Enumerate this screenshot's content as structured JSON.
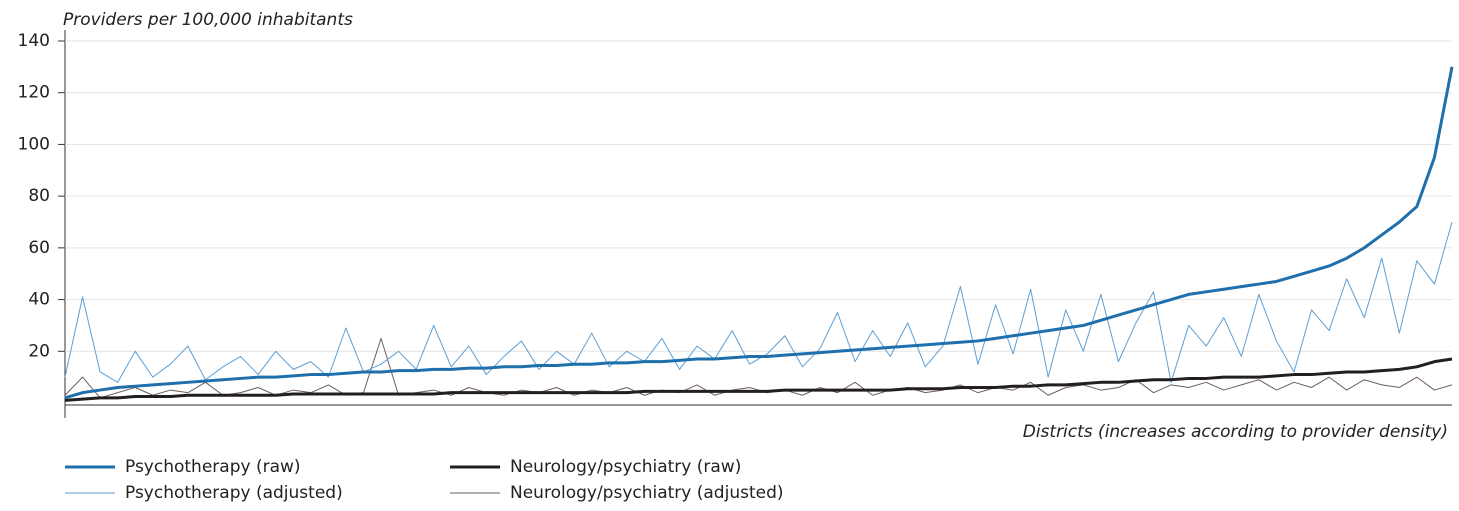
{
  "chart_data": {
    "type": "line",
    "y_label": "Providers per 100,000 inhabitants",
    "x_label": "Districts (increases according to provider density)",
    "categories": [
      null,
      null,
      null,
      null,
      null,
      null,
      null,
      null,
      null,
      null,
      null,
      null,
      null,
      null,
      null,
      null,
      null,
      null,
      null,
      null,
      null,
      null,
      null,
      null,
      null,
      null,
      null,
      null,
      null,
      null,
      null,
      null,
      null,
      null,
      null,
      null,
      null,
      null,
      null,
      null,
      null,
      null,
      null,
      null,
      null,
      null,
      null,
      null,
      null,
      null,
      null,
      null,
      null,
      null,
      null,
      null,
      null,
      null,
      null,
      null,
      null,
      null,
      null,
      null,
      null,
      null,
      null,
      null,
      null,
      null,
      null,
      null,
      null,
      null,
      null,
      null,
      null,
      null,
      null,
      null
    ],
    "ylim": [
      0,
      140
    ],
    "yticks": [
      20,
      40,
      60,
      80,
      100,
      120,
      140
    ],
    "grid": true,
    "legend": "bottom-left",
    "series": [
      {
        "name": "Psychotherapy (raw)",
        "color": "#1f6fad",
        "width": 3,
        "values": [
          2,
          4,
          5,
          6,
          6.5,
          7,
          7.5,
          8,
          8.5,
          9,
          9.5,
          10,
          10,
          10.5,
          11,
          11,
          11.5,
          12,
          12,
          12.5,
          12.5,
          13,
          13,
          13.5,
          13.5,
          14,
          14,
          14.5,
          14.5,
          15,
          15,
          15.5,
          15.5,
          16,
          16,
          16.5,
          17,
          17,
          17.5,
          18,
          18,
          18.5,
          19,
          19.5,
          20,
          20.5,
          21,
          21.5,
          22,
          22.5,
          23,
          23.5,
          24,
          25,
          26,
          27,
          28,
          29,
          30,
          32,
          34,
          36,
          38,
          40,
          42,
          43,
          44,
          45,
          46,
          47,
          49,
          51,
          53,
          56,
          60,
          65,
          70,
          76,
          95,
          130
        ]
      },
      {
        "name": "Psychotherapy (adjusted)",
        "color": "#5b9fd6",
        "width": 1,
        "values": [
          10,
          41,
          12,
          8,
          20,
          10,
          15,
          22,
          9,
          14,
          18,
          11,
          20,
          13,
          16,
          10,
          29,
          12,
          15,
          20,
          13,
          30,
          14,
          22,
          11,
          18,
          24,
          13,
          20,
          15,
          27,
          14,
          20,
          16,
          25,
          13,
          22,
          17,
          28,
          15,
          19,
          26,
          14,
          21,
          35,
          16,
          28,
          18,
          31,
          14,
          22,
          45,
          15,
          38,
          19,
          44,
          10,
          36,
          20,
          42,
          16,
          31,
          43,
          8,
          30,
          22,
          33,
          18,
          42,
          24,
          12,
          36,
          28,
          48,
          33,
          56,
          27,
          55,
          46,
          70
        ]
      },
      {
        "name": "Neurology/psychiatry (raw)",
        "color": "#231f20",
        "width": 3,
        "values": [
          1,
          1.5,
          2,
          2,
          2.5,
          2.5,
          2.5,
          3,
          3,
          3,
          3,
          3,
          3,
          3.5,
          3.5,
          3.5,
          3.5,
          3.5,
          3.5,
          3.5,
          3.5,
          3.5,
          4,
          4,
          4,
          4,
          4,
          4,
          4,
          4,
          4,
          4,
          4,
          4.5,
          4.5,
          4.5,
          4.5,
          4.5,
          4.5,
          4.5,
          4.5,
          5,
          5,
          5,
          5,
          5,
          5,
          5,
          5.5,
          5.5,
          5.5,
          6,
          6,
          6,
          6.5,
          6.5,
          7,
          7,
          7.5,
          8,
          8,
          8.5,
          9,
          9,
          9.5,
          9.5,
          10,
          10,
          10,
          10.5,
          11,
          11,
          11.5,
          12,
          12,
          12.5,
          13,
          14,
          16,
          17
        ]
      },
      {
        "name": "Neurology/psychiatry (adjusted)",
        "color": "#6e5e5e",
        "width": 1,
        "values": [
          3,
          10,
          2,
          4,
          6,
          3,
          5,
          4,
          8,
          3,
          4,
          6,
          3,
          5,
          4,
          7,
          3,
          4,
          25,
          3,
          4,
          5,
          3,
          6,
          4,
          3,
          5,
          4,
          6,
          3,
          5,
          4,
          6,
          3,
          5,
          4,
          7,
          3,
          5,
          6,
          4,
          5,
          3,
          6,
          4,
          8,
          3,
          5,
          6,
          4,
          5,
          7,
          4,
          6,
          5,
          8,
          3,
          6,
          7,
          5,
          6,
          9,
          4,
          7,
          6,
          8,
          5,
          7,
          9,
          5,
          8,
          6,
          10,
          5,
          9,
          7,
          6,
          10,
          5,
          7
        ]
      }
    ]
  }
}
